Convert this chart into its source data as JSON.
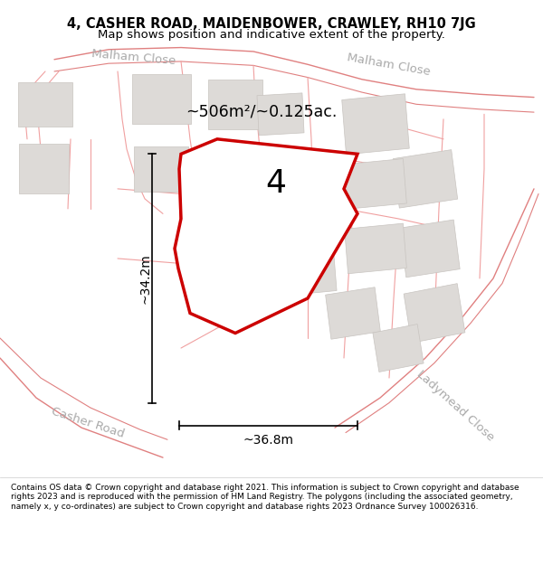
{
  "title_line1": "4, CASHER ROAD, MAIDENBOWER, CRAWLEY, RH10 7JG",
  "title_line2": "Map shows position and indicative extent of the property.",
  "area_label": "~506m²/~0.125ac.",
  "number_label": "4",
  "dim_height": "~34.2m",
  "dim_width": "~36.8m",
  "road_label_left": "Casher Road",
  "road_label_right": "Ladymead Close",
  "road_label_top_left": "Malham Close",
  "road_label_top_right": "Malham Close",
  "footer_text": "Contains OS data © Crown copyright and database right 2021. This information is subject to Crown copyright and database rights 2023 and is reproduced with the permission of HM Land Registry. The polygons (including the associated geometry, namely x, y co-ordinates) are subject to Crown copyright and database rights 2023 Ordnance Survey 100026316.",
  "bg_color": "#f5f3f1",
  "property_fill": "#e8e5e2",
  "property_edge": "#cc0000",
  "road_line_color": "#f0a0a0",
  "road_line_color2": "#e08080",
  "block_fill": "#dddad7",
  "block_edge": "#c8c4c0",
  "label_color": "#aaaaaa",
  "title_fontsize": 10.5,
  "subtitle_fontsize": 9.5
}
